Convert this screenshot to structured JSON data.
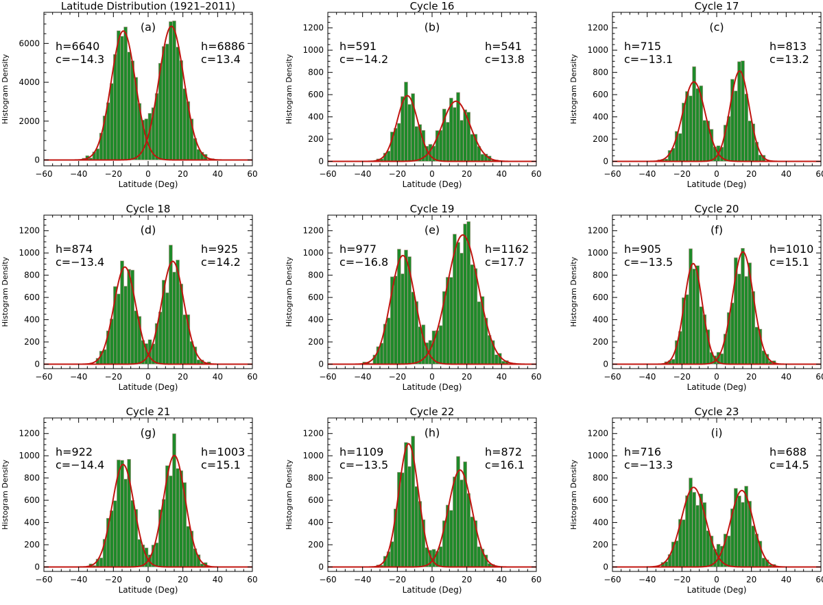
{
  "figure": {
    "xlabel": "Latitude (Deg)",
    "ylabel": "Histogram Density",
    "xlim": [
      -60,
      60
    ],
    "xticks": [
      -60,
      -40,
      -20,
      0,
      20,
      40,
      60
    ],
    "bar_color": "#1f8a2a",
    "bar_edge_color": "#c8a0a0",
    "fit_color": "#c0140f",
    "bin_width": 2
  },
  "chart_data": [
    {
      "type": "bar",
      "title": "Latitude Distribution (1921–2011)",
      "letter": "(a)",
      "ylim": [
        -300,
        7600
      ],
      "yticks": [
        0,
        2000,
        4000,
        6000
      ],
      "yminor": 500,
      "south": {
        "h": 6640,
        "c": -14.3,
        "sigma": 7.0,
        "h_label": "h=6640",
        "c_label": "c=−14.3"
      },
      "north": {
        "h": 6886,
        "c": 13.4,
        "sigma": 7.2,
        "h_label": "h=6886",
        "c_label": "c=13.4"
      },
      "noise": [
        -4,
        9,
        -7,
        12,
        -3,
        -10,
        6,
        14,
        -8,
        3,
        -12,
        7,
        11,
        -5,
        -9,
        4,
        13,
        -6,
        8,
        -11,
        2,
        10,
        -4,
        -13,
        5,
        12,
        -2,
        -8,
        9,
        3,
        -14,
        6,
        11,
        -7,
        1,
        -10,
        8,
        13,
        -3,
        -9,
        5,
        12,
        -6,
        4,
        10,
        -12,
        7,
        -1,
        9,
        -5,
        11,
        -8,
        3,
        14,
        -4,
        -10,
        6,
        2,
        -7,
        12
      ],
      "noise_scale": 0.04
    },
    {
      "type": "bar",
      "title": "Cycle 16",
      "letter": "(b)",
      "ylim": [
        -40,
        1340
      ],
      "yticks": [
        0,
        200,
        400,
        600,
        800,
        1000,
        1200
      ],
      "yminor": 50,
      "south": {
        "h": 591,
        "c": -14.2,
        "sigma": 6.0,
        "h_label": "h=591",
        "c_label": "c=−14.2"
      },
      "north": {
        "h": 541,
        "c": 13.8,
        "sigma": 8.0,
        "h_label": "h=541",
        "c_label": "c=13.8"
      },
      "noise": [
        6,
        -9,
        3,
        12,
        -5,
        -11,
        8,
        2,
        -13,
        10,
        -4,
        7,
        -8,
        14,
        -2,
        -10,
        5,
        11,
        -6,
        9,
        -12,
        4,
        13,
        -7,
        1,
        -9,
        10,
        -3,
        12,
        -11,
        6,
        -5,
        8,
        -13,
        3,
        11,
        -6,
        9,
        -1,
        -10,
        7,
        13,
        -4,
        5,
        -12,
        10,
        -8,
        2,
        14,
        -3,
        -7,
        11,
        -9,
        6,
        4,
        -13,
        12,
        -5,
        1,
        8
      ],
      "noise_scale": 0.16
    },
    {
      "type": "bar",
      "title": "Cycle 17",
      "letter": "(c)",
      "ylim": [
        -40,
        1340
      ],
      "yticks": [
        0,
        200,
        400,
        600,
        800,
        1000,
        1200
      ],
      "yminor": 50,
      "south": {
        "h": 715,
        "c": -13.1,
        "sigma": 6.5,
        "h_label": "h=715",
        "c_label": "c=−13.1"
      },
      "north": {
        "h": 813,
        "c": 13.2,
        "sigma": 5.5,
        "h_label": "h=813",
        "c_label": "c=13.2"
      },
      "noise": [
        -6,
        11,
        -3,
        8,
        13,
        -10,
        4,
        -12,
        7,
        2,
        -9,
        12,
        -5,
        10,
        -14,
        6,
        3,
        -8,
        11,
        -2,
        9,
        -11,
        5,
        14,
        -7,
        1,
        -13,
        8,
        -4,
        12,
        -9,
        6,
        10,
        -3,
        -12,
        7,
        2,
        -10,
        13,
        -6,
        4,
        11,
        -8,
        9,
        -1,
        -13,
        5,
        12,
        -7,
        3,
        10,
        -11,
        8,
        -4,
        14,
        -9,
        2,
        6,
        -12,
        11
      ],
      "noise_scale": 0.14
    },
    {
      "type": "bar",
      "title": "Cycle 18",
      "letter": "(d)",
      "ylim": [
        -40,
        1340
      ],
      "yticks": [
        0,
        200,
        400,
        600,
        800,
        1000,
        1200
      ],
      "yminor": 50,
      "south": {
        "h": 874,
        "c": -13.4,
        "sigma": 6.3,
        "h_label": "h=874",
        "c_label": "c=−13.4"
      },
      "north": {
        "h": 925,
        "c": 14.2,
        "sigma": 6.4,
        "h_label": "h=925",
        "c_label": "c=14.2"
      },
      "noise": [
        4,
        -10,
        12,
        -6,
        8,
        -13,
        2,
        10,
        -4,
        -11,
        7,
        13,
        -8,
        5,
        -2,
        11,
        -9,
        6,
        -12,
        3,
        14,
        -5,
        9,
        -7,
        1,
        12,
        -10,
        4,
        -3,
        8,
        -13,
        11,
        -6,
        7,
        2,
        -9,
        13,
        -4,
        10,
        -11,
        5,
        -1,
        12,
        -8,
        6,
        -12,
        9,
        3,
        -5,
        11,
        -7,
        14,
        -2,
        -10,
        8,
        4,
        -13,
        6,
        10,
        -3
      ],
      "noise_scale": 0.13
    },
    {
      "type": "bar",
      "title": "Cycle 19",
      "letter": "(e)",
      "ylim": [
        -40,
        1340
      ],
      "yticks": [
        0,
        200,
        400,
        600,
        800,
        1000,
        1200
      ],
      "yminor": 50,
      "south": {
        "h": 977,
        "c": -16.8,
        "sigma": 7.0,
        "h_label": "h=977",
        "c_label": "c=−16.8"
      },
      "north": {
        "h": 1162,
        "c": 17.7,
        "sigma": 9.0,
        "h_label": "h=1162",
        "c_label": "c=17.7"
      },
      "noise": [
        -8,
        5,
        12,
        -3,
        -11,
        9,
        2,
        -14,
        7,
        11,
        -6,
        4,
        -10,
        13,
        -2,
        8,
        -12,
        6,
        10,
        -5,
        3,
        -9,
        14,
        -7,
        1,
        12,
        -4,
        -13,
        9,
        5,
        -8,
        11,
        -1,
        -10,
        7,
        13,
        -6,
        2,
        -12,
        10,
        4,
        -3,
        8,
        -11,
        12,
        -7,
        6,
        -14,
        3,
        9,
        -5,
        11,
        -2,
        -9,
        13,
        1,
        -6,
        8,
        -12,
        5
      ],
      "noise_scale": 0.11
    },
    {
      "type": "bar",
      "title": "Cycle 20",
      "letter": "(f)",
      "ylim": [
        -40,
        1340
      ],
      "yticks": [
        0,
        200,
        400,
        600,
        800,
        1000,
        1200
      ],
      "yminor": 50,
      "south": {
        "h": 905,
        "c": -13.5,
        "sigma": 5.2,
        "h_label": "h=905",
        "c_label": "c=−13.5"
      },
      "north": {
        "h": 1010,
        "c": 15.1,
        "sigma": 6.0,
        "h_label": "h=1010",
        "c_label": "c=15.1"
      },
      "noise": [
        7,
        -12,
        3,
        10,
        -6,
        -9,
        13,
        -2,
        5,
        -11,
        8,
        1,
        -14,
        11,
        -4,
        9,
        -8,
        12,
        -3,
        6,
        -10,
        4,
        14,
        -7,
        -1,
        10,
        -13,
        5,
        8,
        -5,
        12,
        -9,
        2,
        -11,
        7,
        3,
        -12,
        11,
        -6,
        9,
        -2,
        13,
        -8,
        4,
        -10,
        6,
        12,
        -4,
        1,
        -13,
        10,
        -7,
        5,
        8,
        -11,
        14,
        -3,
        -9,
        6,
        2
      ],
      "noise_scale": 0.13
    },
    {
      "type": "bar",
      "title": "Cycle 21",
      "letter": "(g)",
      "ylim": [
        -40,
        1340
      ],
      "yticks": [
        0,
        200,
        400,
        600,
        800,
        1000,
        1200
      ],
      "yminor": 50,
      "south": {
        "h": 922,
        "c": -14.4,
        "sigma": 6.3,
        "h_label": "h=922",
        "c_label": "c=−14.4"
      },
      "north": {
        "h": 1003,
        "c": 15.1,
        "sigma": 6.3,
        "h_label": "h=1003",
        "c_label": "c=15.1"
      },
      "noise": [
        -5,
        10,
        2,
        -12,
        8,
        13,
        -7,
        -1,
        11,
        -9,
        4,
        -14,
        6,
        12,
        -3,
        -10,
        9,
        3,
        -8,
        14,
        -4,
        7,
        -11,
        1,
        12,
        -6,
        5,
        -13,
        10,
        -2,
        8,
        -9,
        13,
        -5,
        3,
        11,
        -12,
        6,
        -1,
        9,
        -7,
        14,
        -10,
        4,
        2,
        -11,
        12,
        -8,
        7,
        -3,
        10,
        -13,
        5,
        11,
        -6,
        1,
        -9,
        13,
        -4,
        8
      ],
      "noise_scale": 0.12
    },
    {
      "type": "bar",
      "title": "Cycle 22",
      "letter": "(h)",
      "ylim": [
        -40,
        1340
      ],
      "yticks": [
        0,
        200,
        400,
        600,
        800,
        1000,
        1200
      ],
      "yminor": 50,
      "south": {
        "h": 1109,
        "c": -13.5,
        "sigma": 5.7,
        "h_label": "h=1109",
        "c_label": "c=−13.5"
      },
      "north": {
        "h": 872,
        "c": 16.1,
        "sigma": 6.8,
        "h_label": "h=872",
        "c_label": "c=16.1"
      },
      "noise": [
        9,
        -4,
        -11,
        6,
        13,
        -8,
        2,
        -13,
        10,
        5,
        -6,
        12,
        -2,
        -9,
        7,
        14,
        -5,
        3,
        -12,
        11,
        -7,
        1,
        8,
        -10,
        4,
        13,
        -3,
        -11,
        9,
        6,
        -14,
        2,
        10,
        -6,
        12,
        -1,
        -8,
        7,
        -12,
        5,
        11,
        -4,
        3,
        -9,
        14,
        -7,
        8,
        -2,
        -13,
        10,
        6,
        -5,
        1,
        12,
        -10,
        4,
        -8,
        9,
        -3,
        11
      ],
      "noise_scale": 0.12
    },
    {
      "type": "bar",
      "title": "Cycle 23",
      "letter": "(i)",
      "ylim": [
        -40,
        1340
      ],
      "yticks": [
        0,
        200,
        400,
        600,
        800,
        1000,
        1200
      ],
      "yminor": 50,
      "south": {
        "h": 716,
        "c": -13.3,
        "sigma": 7.0,
        "h_label": "h=716",
        "c_label": "c=−13.3"
      },
      "north": {
        "h": 688,
        "c": 14.5,
        "sigma": 6.5,
        "h_label": "h=688",
        "c_label": "c=14.5"
      },
      "noise": [
        -3,
        8,
        12,
        -10,
        5,
        -7,
        11,
        1,
        -13,
        9,
        -5,
        3,
        14,
        -8,
        6,
        -11,
        2,
        10,
        -4,
        -12,
        7,
        13,
        -6,
        4,
        -9,
        11,
        -1,
        8,
        -14,
        5,
        12,
        -3,
        -10,
        9,
        6,
        -7,
        1,
        13,
        -11,
        4,
        -5,
        10,
        -8,
        2,
        12,
        -12,
        7,
        3,
        -9,
        11,
        -6,
        14,
        -2,
        -10,
        8,
        5,
        -13,
        9,
        -4,
        6
      ],
      "noise_scale": 0.12
    }
  ]
}
